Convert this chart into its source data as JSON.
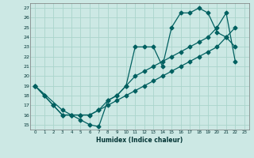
{
  "xlabel": "Humidex (Indice chaleur)",
  "background_color": "#cce8e4",
  "grid_color": "#aad4cc",
  "line_color": "#006060",
  "xlim": [
    -0.5,
    23.5
  ],
  "ylim": [
    14.5,
    27.5
  ],
  "xticks": [
    0,
    1,
    2,
    3,
    4,
    5,
    6,
    7,
    8,
    9,
    10,
    11,
    12,
    13,
    14,
    15,
    16,
    17,
    18,
    19,
    20,
    21,
    22,
    23
  ],
  "yticks": [
    15,
    16,
    17,
    18,
    19,
    20,
    21,
    22,
    23,
    24,
    25,
    26,
    27
  ],
  "line1_x": [
    0,
    1,
    2,
    3,
    4,
    5,
    6,
    7,
    8,
    9,
    10,
    11,
    12,
    13,
    14,
    15,
    16,
    17,
    18,
    19,
    20,
    21,
    22
  ],
  "line1_y": [
    19,
    18,
    17,
    16,
    16,
    15.5,
    15,
    14.8,
    17.5,
    18,
    19,
    23,
    23,
    23,
    21,
    25,
    26.5,
    26.5,
    27,
    26.5,
    24.5,
    24,
    23
  ],
  "line2_x": [
    0,
    3,
    4,
    5,
    6,
    7,
    8,
    9,
    10,
    11,
    12,
    13,
    14,
    15,
    16,
    17,
    18,
    19,
    20,
    21,
    22
  ],
  "line2_y": [
    19,
    16.5,
    16,
    16,
    16,
    16.5,
    17.5,
    18,
    19,
    20,
    20.5,
    21,
    21.5,
    22,
    22.5,
    23,
    23.5,
    24,
    25,
    26.5,
    21.5
  ],
  "line3_x": [
    0,
    1,
    2,
    3,
    4,
    5,
    6,
    7,
    8,
    9,
    10,
    11,
    12,
    13,
    14,
    15,
    16,
    17,
    18,
    19,
    20,
    21,
    22
  ],
  "line3_y": [
    19,
    18,
    17,
    16,
    16,
    16,
    16,
    16.5,
    17,
    17.5,
    18,
    18.5,
    19,
    19.5,
    20,
    20.5,
    21,
    21.5,
    22,
    22.5,
    23,
    24,
    25
  ]
}
